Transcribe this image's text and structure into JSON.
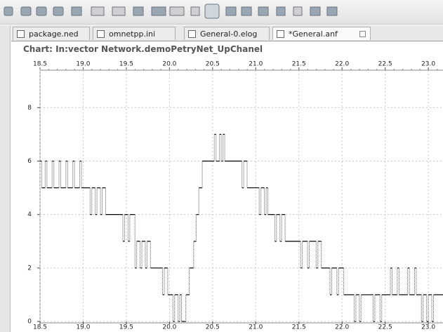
{
  "tabs": [
    "package.ned",
    "omnetpp.ini",
    "General-0.elog",
    "*General.anf"
  ],
  "chart": {
    "type": "line",
    "title": "Chart: In:vector Network.demoPetryNet_UpChanel",
    "x": [
      18.5,
      18.52,
      18.56,
      18.58,
      18.64,
      18.66,
      18.72,
      18.74,
      18.8,
      18.82,
      18.88,
      18.9,
      18.96,
      18.98,
      19.08,
      19.1,
      19.14,
      19.16,
      19.2,
      19.22,
      19.26,
      19.46,
      19.48,
      19.52,
      19.54,
      19.6,
      19.62,
      19.66,
      19.68,
      19.72,
      19.74,
      19.78,
      19.92,
      19.94,
      19.98,
      20.04,
      20.06,
      20.1,
      20.12,
      20.14,
      20.19,
      20.23,
      20.28,
      20.31,
      20.34,
      20.38,
      20.52,
      20.54,
      20.58,
      20.6,
      20.62,
      20.64,
      20.84,
      20.86,
      20.9,
      21.04,
      21.06,
      21.1,
      21.12,
      21.14,
      21.22,
      21.24,
      21.28,
      21.3,
      21.34,
      21.52,
      21.54,
      21.6,
      21.62,
      21.7,
      21.72,
      21.76,
      21.86,
      21.88,
      21.94,
      21.96,
      22.02,
      22.14,
      22.16,
      22.2,
      22.22,
      22.36,
      22.38,
      22.44,
      22.46,
      22.56,
      22.58,
      22.64,
      22.66,
      22.76,
      22.78,
      22.84,
      22.86,
      22.92,
      22.94,
      22.98,
      23.0,
      23.04,
      23.06
    ],
    "series": [
      {
        "color": "#000000",
        "values": [
          6,
          5,
          6,
          5,
          6,
          5,
          6,
          5,
          6,
          5,
          6,
          5,
          6,
          5,
          4,
          5,
          4,
          5,
          4,
          5,
          4,
          3,
          4,
          3,
          4,
          2,
          3,
          2,
          3,
          2,
          3,
          2,
          1,
          2,
          1,
          0,
          1,
          0,
          1,
          0,
          1,
          2,
          3,
          4,
          5,
          6,
          7,
          6,
          7,
          6,
          7,
          6,
          5,
          6,
          5,
          4,
          5,
          4,
          5,
          4,
          3,
          4,
          3,
          4,
          3,
          2,
          3,
          2,
          3,
          2,
          3,
          2,
          1,
          2,
          1,
          2,
          1,
          0,
          1,
          0,
          1,
          0,
          1,
          0,
          1,
          2,
          1,
          2,
          1,
          2,
          1,
          2,
          1,
          0,
          1,
          0,
          1,
          0,
          1
        ]
      }
    ],
    "xlim": [
      18.5,
      23.17
    ],
    "xticks": [
      18.5,
      {
        "value": 19,
        "label": "19.0"
      },
      19.5,
      {
        "value": 20,
        "label": "20.0"
      },
      20.5,
      {
        "value": 21,
        "label": "21.0"
      },
      21.5,
      {
        "value": 22,
        "label": "22.0"
      },
      22.5,
      {
        "value": 23,
        "label": "23.0"
      }
    ],
    "ylim": [
      0,
      9.4
    ],
    "yticks": [
      0,
      2,
      4,
      6,
      8
    ],
    "grid": true
  }
}
